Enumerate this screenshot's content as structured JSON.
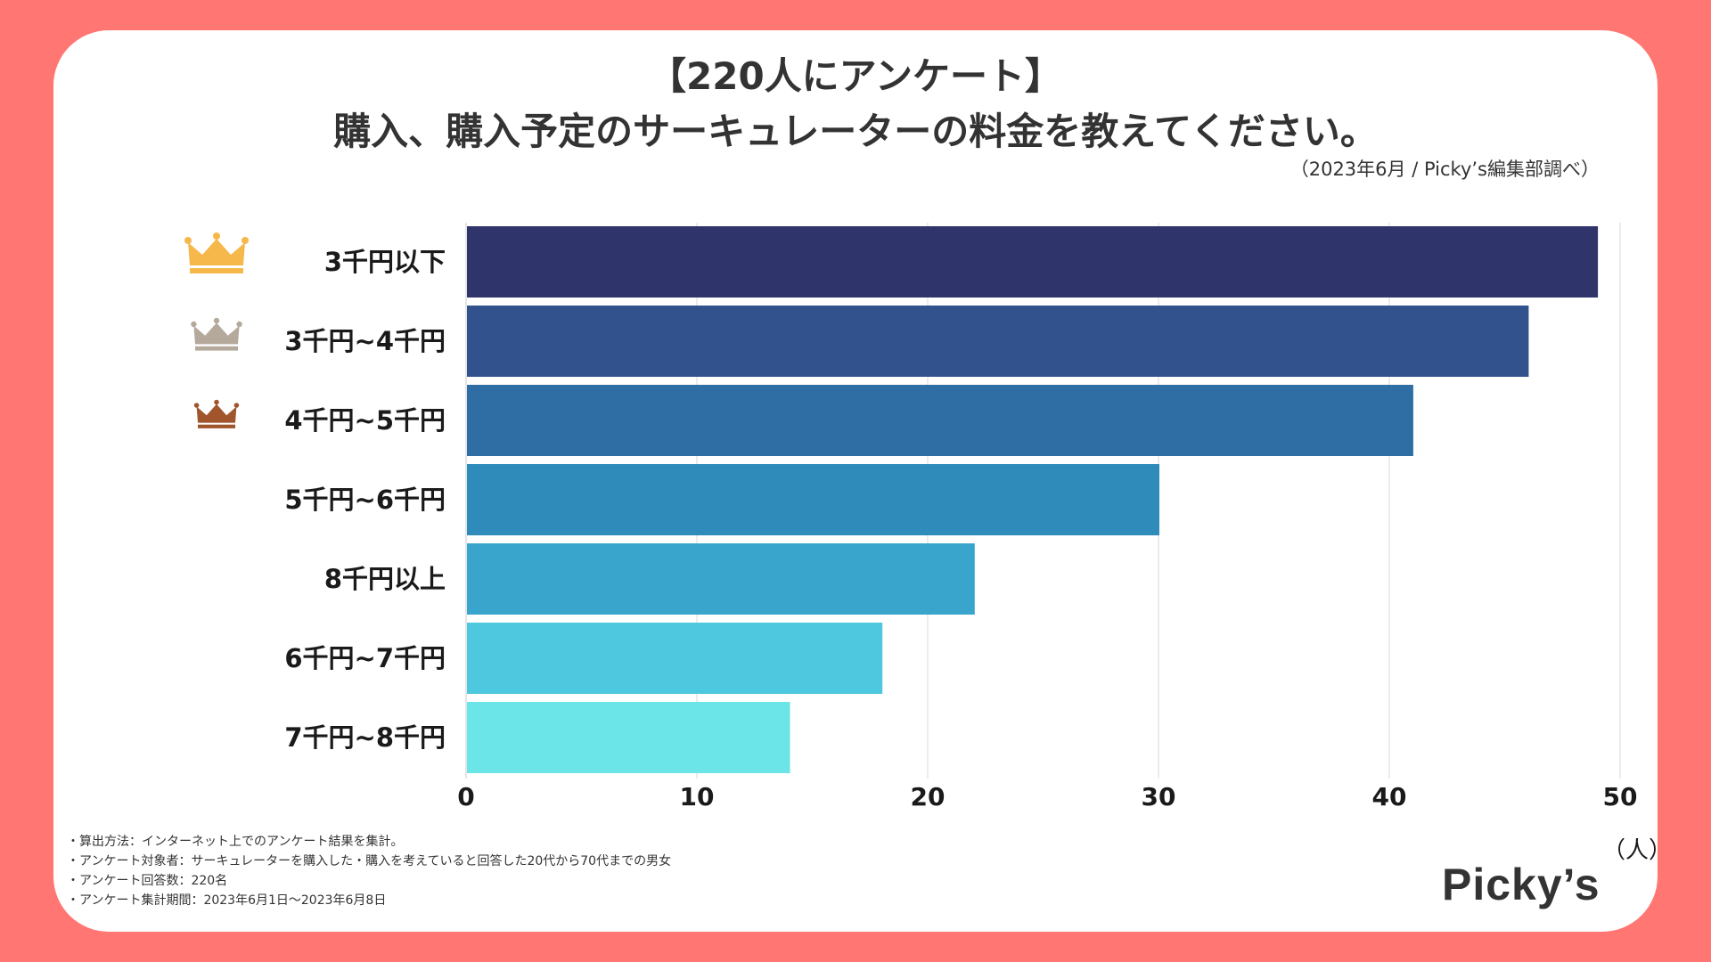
{
  "header": {
    "title_line1": "【220人にアンケート】",
    "title_line2": "購入、購入予定のサーキュレーターの料金を教えてください。",
    "source": "（2023年6月 / Picky’s編集部調べ）"
  },
  "chart_data": {
    "type": "bar",
    "orientation": "horizontal",
    "title": "購入、購入予定のサーキュレーターの料金を教えてください。",
    "categories": [
      "3千円以下",
      "3千円~4千円",
      "4千円~5千円",
      "5千円~6千円",
      "8千円以上",
      "6千円~7千円",
      "7千円~8千円"
    ],
    "values": [
      49,
      46,
      41,
      30,
      22,
      18,
      14
    ],
    "colors": [
      "#2f356b",
      "#31528c",
      "#2e6ea4",
      "#2f8bba",
      "#3aa5cc",
      "#4ec8de",
      "#6be5e8"
    ],
    "xlim": [
      0,
      50
    ],
    "xticks": [
      "0",
      "10",
      "20",
      "30",
      "40",
      "50"
    ],
    "xlabel": "（人）",
    "grid": true,
    "rank_crowns": [
      {
        "rank": 1,
        "icon": "gold-crown-icon",
        "color": "#f6b84b"
      },
      {
        "rank": 2,
        "icon": "silver-crown-icon",
        "color": "#b5a99c"
      },
      {
        "rank": 3,
        "icon": "bronze-crown-icon",
        "color": "#a0552c"
      }
    ]
  },
  "notes": [
    "・算出方法：インターネット上でのアンケート結果を集計。",
    "・アンケート対象者：サーキュレーターを購入した・購入を考えていると回答した20代から70代までの男女",
    "・アンケート回答数：220名",
    "・アンケート集計期間：2023年6月1日〜2023年6月8日"
  ],
  "logo": {
    "text": "Picky’s"
  },
  "colors": {
    "background": "#ff7672",
    "card": "#ffffff",
    "grid": "#d9d9d9"
  }
}
